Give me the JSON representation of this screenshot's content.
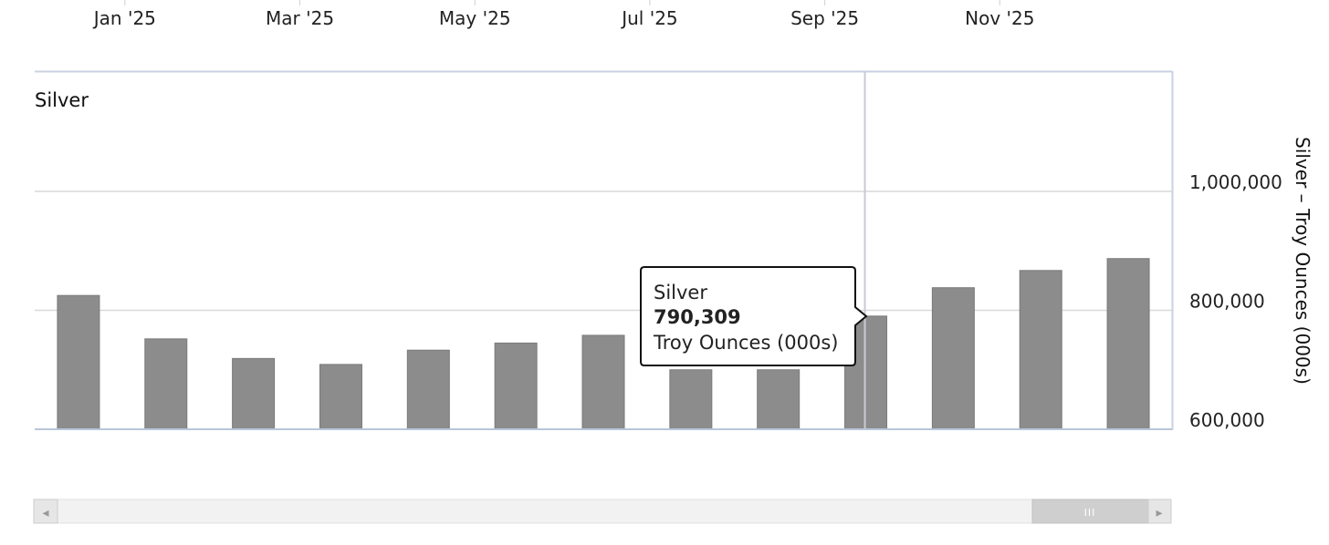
{
  "chart_data": {
    "type": "bar",
    "title": "Silver",
    "xlabel": "",
    "ylabel": "Silver – Troy Ounces (000s)",
    "x_tick_labels": [
      "Jan '25",
      "Mar '25",
      "May '25",
      "Jul '25",
      "Sep '25",
      "Nov '25"
    ],
    "y_tick_labels": [
      "600,000",
      "800,000",
      "1,000,000"
    ],
    "y_ticks": [
      600000,
      800000,
      1000000
    ],
    "ylim": [
      600000,
      1200000
    ],
    "grid": true,
    "series": [
      {
        "name": "Silver",
        "color": "#8c8c8c",
        "values": [
          825000,
          752000,
          719000,
          709000,
          733000,
          745000,
          758000,
          700000,
          700000,
          790309,
          838000,
          867000,
          887000
        ]
      }
    ],
    "crosshair_index": 9,
    "tooltip": {
      "series_name": "Silver",
      "value": "790,309",
      "unit": "Troy Ounces (000s)"
    }
  },
  "navigator": {
    "left_arrow": "◂",
    "right_arrow": "▸",
    "handle_grip": "III"
  }
}
